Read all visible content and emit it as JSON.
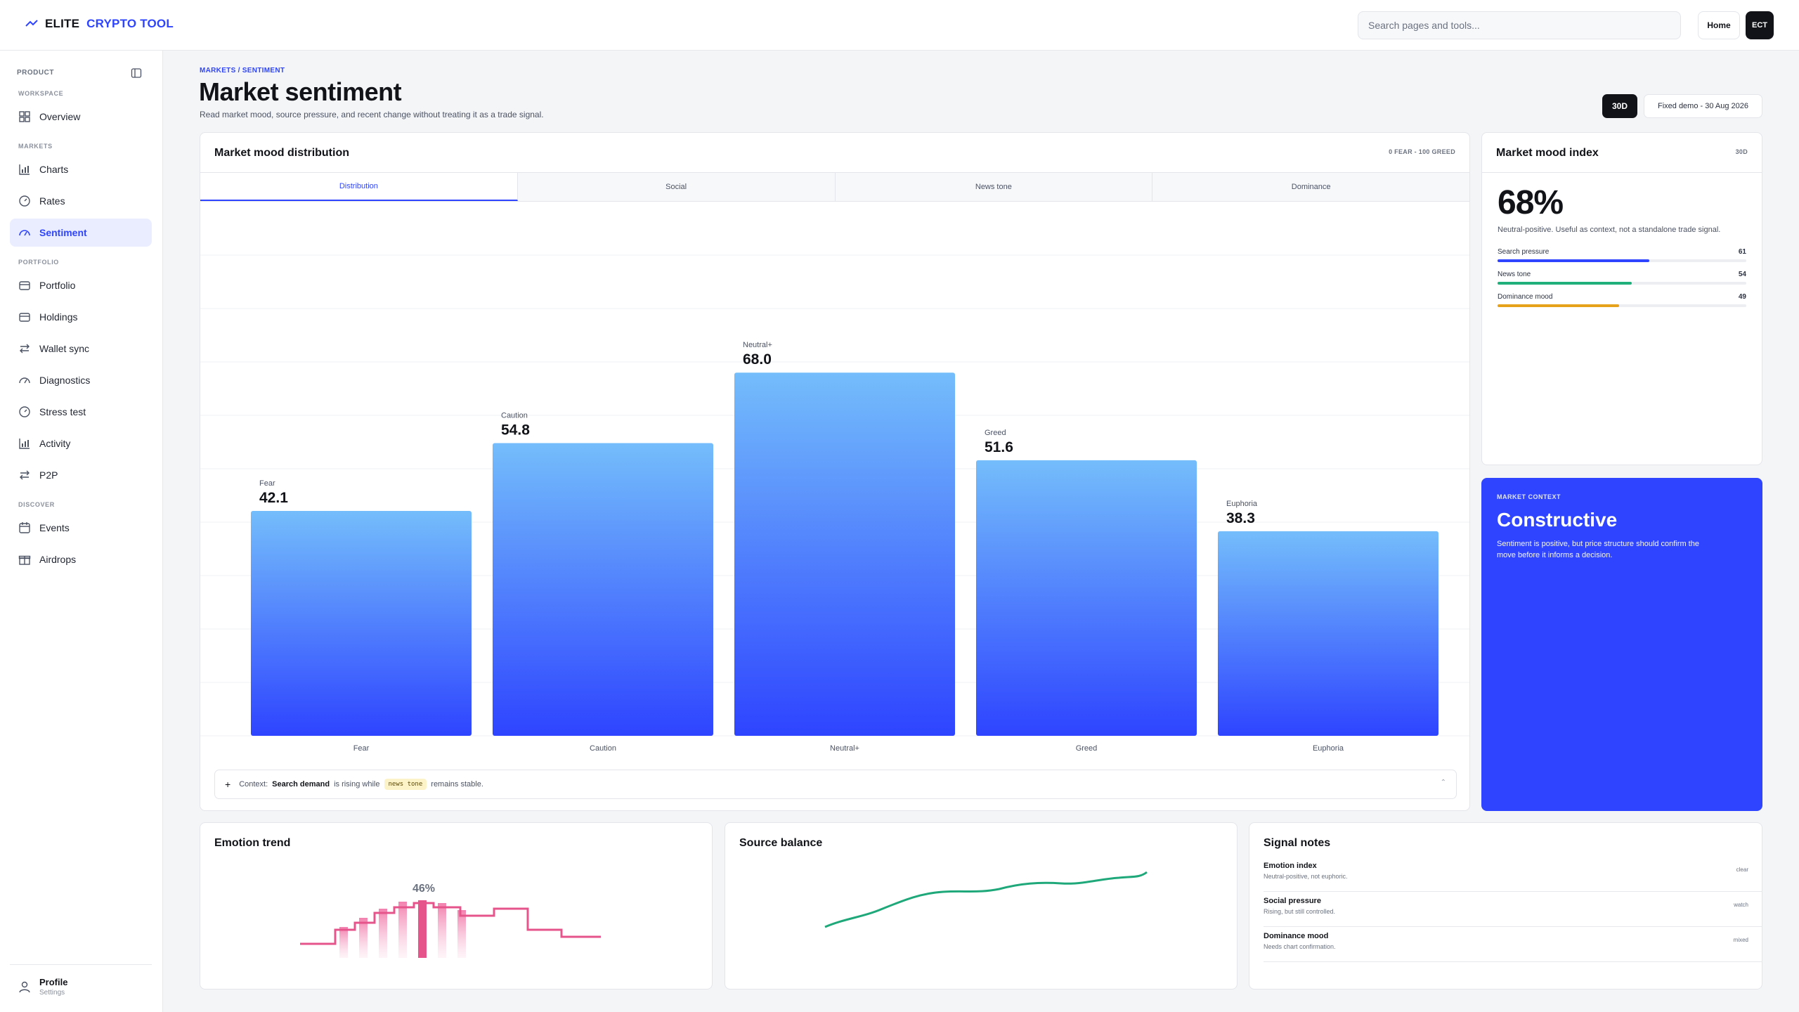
{
  "brand": {
    "part1": "ELITE",
    "part2": "CRYPTO TOOL"
  },
  "header": {
    "search_placeholder": "Search pages and tools...",
    "home_label": "Home",
    "avatar_initials": "ECT"
  },
  "sidebar": {
    "product_label": "PRODUCT",
    "sections": {
      "workspace": "WORKSPACE",
      "markets": "MARKETS",
      "portfolio": "PORTFOLIO",
      "discover": "DISCOVER"
    },
    "items": {
      "overview": "Overview",
      "charts": "Charts",
      "rates": "Rates",
      "sentiment": "Sentiment",
      "portfolio": "Portfolio",
      "holdings": "Holdings",
      "wallet_sync": "Wallet sync",
      "diagnostics": "Diagnostics",
      "stress_test": "Stress test",
      "activity": "Activity",
      "p2p": "P2P",
      "events": "Events",
      "airdrops": "Airdrops"
    },
    "active_item": "Sentiment",
    "profile": {
      "name": "Profile",
      "sub": "Settings"
    }
  },
  "page": {
    "breadcrumb": "MARKETS / SENTIMENT",
    "title": "Market sentiment",
    "subtitle": "Read market mood, source pressure, and recent change without treating it as a trade signal.",
    "range_label": "30D",
    "fixed_demo": "Fixed demo - 30 Aug 2026"
  },
  "distribution": {
    "title": "Market mood distribution",
    "meta": "0 FEAR - 100 GREED",
    "tabs": [
      "Distribution",
      "Social",
      "News tone",
      "Dominance"
    ],
    "active_tab": "Distribution",
    "context": {
      "prefix": "Context:",
      "strong": "Search demand",
      "mid": "is rising while",
      "pill": "news tone",
      "suffix": "remains stable."
    }
  },
  "chart_data": {
    "type": "bar",
    "categories": [
      "Fear",
      "Caution",
      "Neutral+",
      "Greed",
      "Euphoria"
    ],
    "values": [
      42.1,
      54.8,
      68.0,
      51.6,
      38.3
    ],
    "labels": [
      "42.1",
      "54.8",
      "68.0",
      "51.6",
      "38.3"
    ],
    "ylim": [
      0,
      100
    ],
    "grid": true,
    "colors": {
      "top": "#74bdfb",
      "bottom": "#2e44ff"
    }
  },
  "mood_index": {
    "title": "Market mood index",
    "meta": "30D",
    "value": "68%",
    "description": "Neutral-positive. Useful as context, not a standalone trade signal.",
    "meters": [
      {
        "label": "Search pressure",
        "value": "61",
        "fill": 0.61,
        "color": "#2e44ff"
      },
      {
        "label": "News tone",
        "value": "54",
        "fill": 0.54,
        "color": "#1fb07b"
      },
      {
        "label": "Dominance mood",
        "value": "49",
        "fill": 0.49,
        "color": "#e7a21b"
      }
    ]
  },
  "market_context": {
    "kicker": "MARKET CONTEXT",
    "title": "Constructive",
    "text": "Sentiment is positive, but price structure should confirm the move before it informs a decision."
  },
  "emotion_trend": {
    "title": "Emotion trend",
    "peak_label": "46%",
    "color": "#e5558b"
  },
  "source_balance": {
    "title": "Source balance",
    "color": "#1fa97a"
  },
  "signal_notes": {
    "title": "Signal notes",
    "items": [
      {
        "title": "Emotion index",
        "desc": "Neutral-positive, not euphoric.",
        "status": "clear"
      },
      {
        "title": "Social pressure",
        "desc": "Rising, but still controlled.",
        "status": "watch"
      },
      {
        "title": "Dominance mood",
        "desc": "Needs chart confirmation.",
        "status": "mixed"
      }
    ]
  }
}
